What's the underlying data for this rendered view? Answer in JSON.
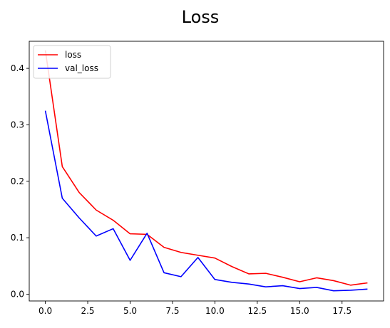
{
  "chart_data": {
    "type": "line",
    "title": "Loss",
    "xlabel": "",
    "ylabel": "",
    "xlim": [
      -0.95,
      19.95
    ],
    "ylim": [
      -0.012,
      0.448
    ],
    "xticks": [
      0.0,
      2.5,
      5.0,
      7.5,
      10.0,
      12.5,
      15.0,
      17.5
    ],
    "xtick_labels": [
      "0.0",
      "2.5",
      "5.0",
      "7.5",
      "10.0",
      "12.5",
      "15.0",
      "17.5"
    ],
    "yticks": [
      0.0,
      0.1,
      0.2,
      0.3,
      0.4
    ],
    "ytick_labels": [
      "0.0",
      "0.1",
      "0.2",
      "0.3",
      "0.4"
    ],
    "grid": false,
    "legend": "upper-left",
    "x": [
      0,
      1,
      2,
      3,
      4,
      5,
      6,
      7,
      8,
      9,
      10,
      11,
      12,
      13,
      14,
      15,
      16,
      17,
      18,
      19
    ],
    "series": [
      {
        "name": "loss",
        "color": "#ff0000",
        "values": [
          0.432,
          0.226,
          0.18,
          0.149,
          0.131,
          0.107,
          0.106,
          0.083,
          0.074,
          0.069,
          0.064,
          0.049,
          0.036,
          0.037,
          0.03,
          0.022,
          0.029,
          0.024,
          0.016,
          0.02
        ]
      },
      {
        "name": "val_loss",
        "color": "#0000ff",
        "values": [
          0.325,
          0.17,
          0.135,
          0.103,
          0.116,
          0.06,
          0.108,
          0.038,
          0.031,
          0.065,
          0.026,
          0.021,
          0.018,
          0.013,
          0.015,
          0.01,
          0.012,
          0.006,
          0.007,
          0.009
        ]
      }
    ]
  }
}
